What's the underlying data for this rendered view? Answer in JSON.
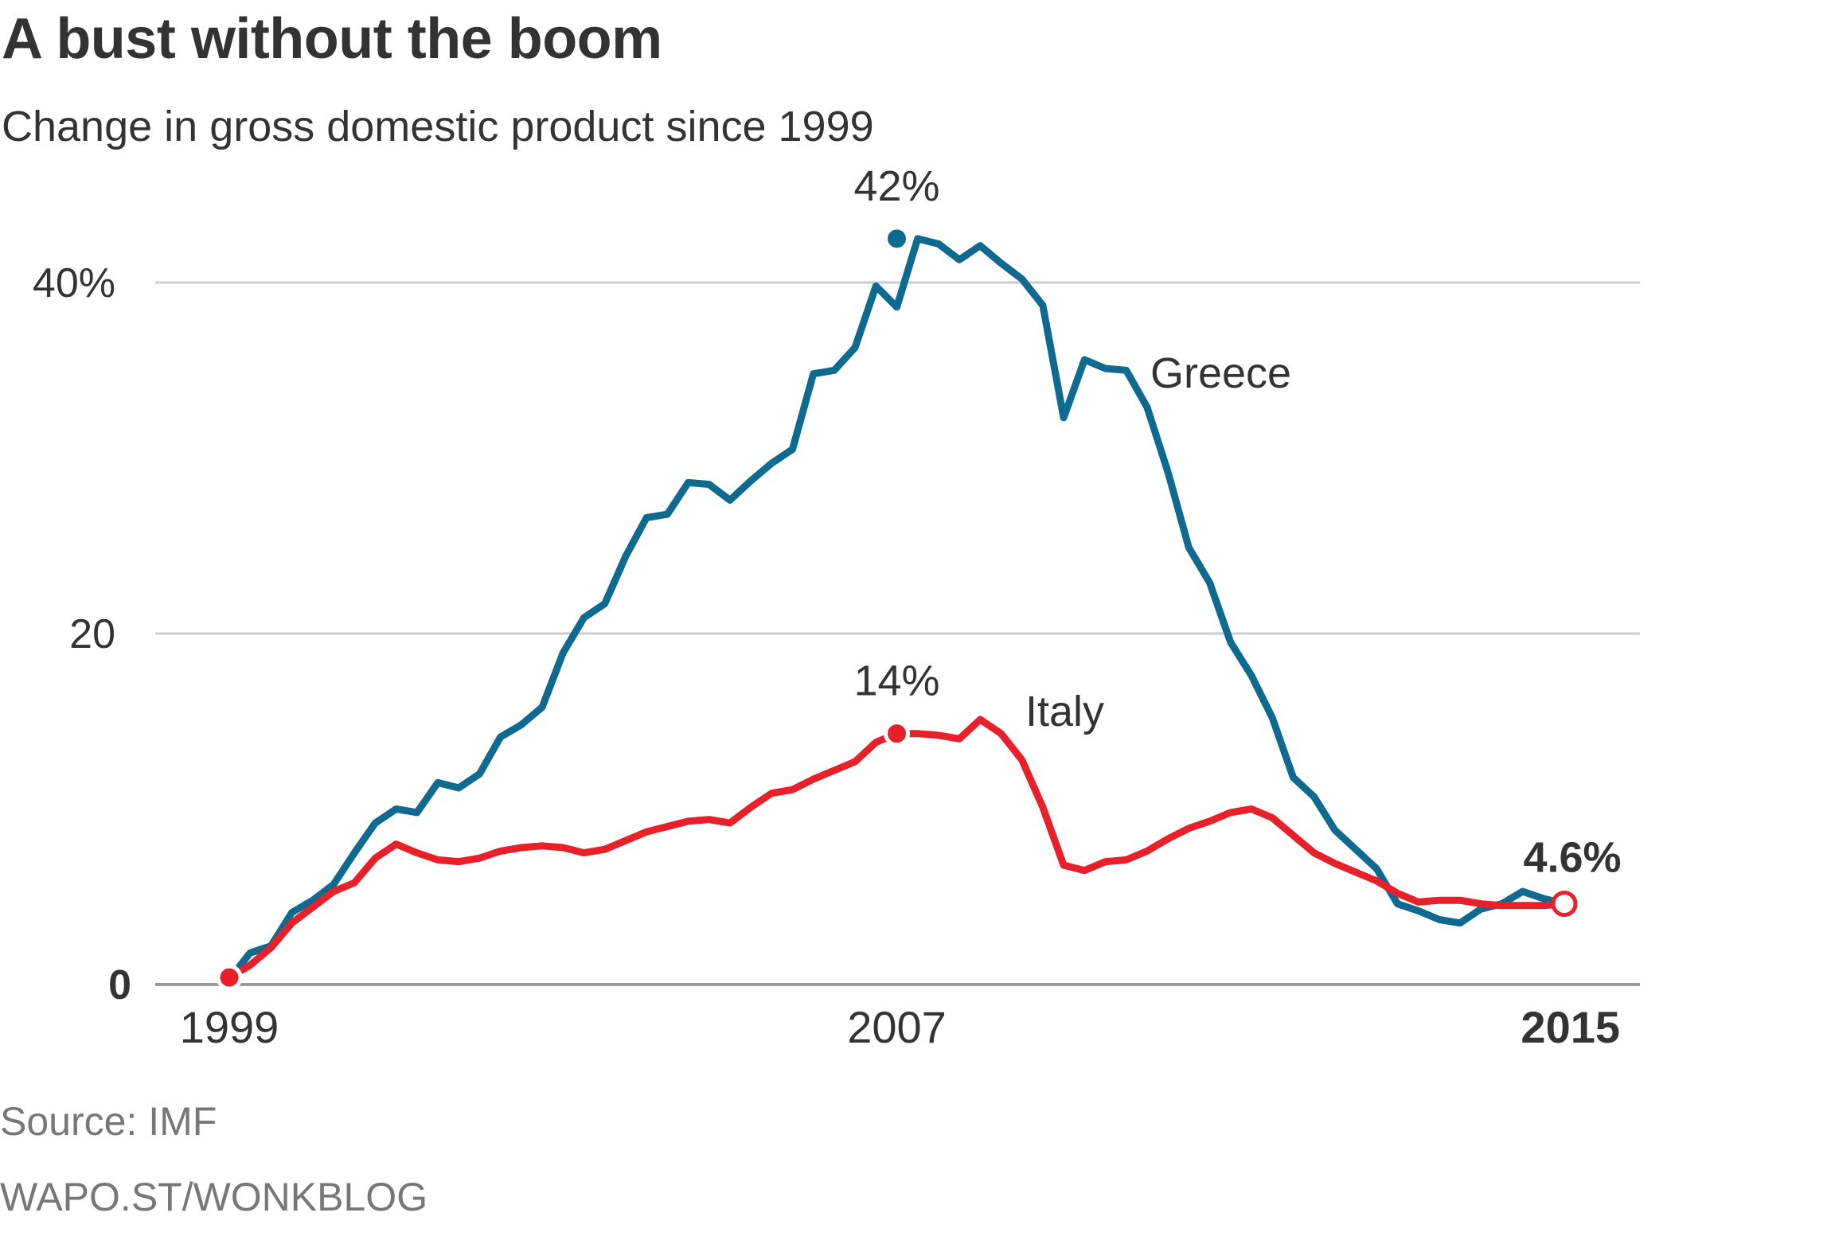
{
  "title": "A bust without the boom",
  "subtitle": "Change in gross domestic product since 1999",
  "source": "Source: IMF",
  "credit": "WAPO.ST/WONKBLOG",
  "colors": {
    "greece": "#0e6b8f",
    "italy": "#e8202a",
    "grid": "#cccccc",
    "axis": "#999999",
    "text": "#333333"
  },
  "chart_data": {
    "type": "line",
    "title": "A bust without the boom",
    "subtitle": "Change in gross domestic product since 1999",
    "xlabel": "",
    "ylabel": "",
    "xlim": [
      1999,
      2015
    ],
    "ylim": [
      0,
      45
    ],
    "x_ticks": [
      {
        "value": 1999,
        "label": "1999"
      },
      {
        "value": 2007,
        "label": "2007"
      },
      {
        "value": 2015,
        "label": "2015"
      }
    ],
    "y_ticks": [
      {
        "value": 0,
        "label": "0"
      },
      {
        "value": 20,
        "label": "20"
      },
      {
        "value": 40,
        "label": "40%"
      }
    ],
    "grid": true,
    "series": [
      {
        "name": "Greece",
        "values": [
          [
            1999,
            0.3
          ],
          [
            1999.25,
            1.8
          ],
          [
            1999.5,
            2.2
          ],
          [
            1999.75,
            4.1
          ],
          [
            2000,
            4.8
          ],
          [
            2000.25,
            5.7
          ],
          [
            2000.5,
            7.5
          ],
          [
            2000.75,
            9.2
          ],
          [
            2001,
            10.0
          ],
          [
            2001.25,
            9.8
          ],
          [
            2001.5,
            11.5
          ],
          [
            2001.75,
            11.2
          ],
          [
            2002,
            12.0
          ],
          [
            2002.25,
            14.1
          ],
          [
            2002.5,
            14.8
          ],
          [
            2002.75,
            15.8
          ],
          [
            2003,
            18.9
          ],
          [
            2003.25,
            20.9
          ],
          [
            2003.5,
            21.7
          ],
          [
            2003.75,
            24.4
          ],
          [
            2004,
            26.6
          ],
          [
            2004.25,
            26.8
          ],
          [
            2004.5,
            28.6
          ],
          [
            2004.75,
            28.5
          ],
          [
            2005,
            27.6
          ],
          [
            2005.25,
            28.7
          ],
          [
            2005.5,
            29.7
          ],
          [
            2005.75,
            30.5
          ],
          [
            2006,
            34.8
          ],
          [
            2006.25,
            35.0
          ],
          [
            2006.5,
            36.3
          ],
          [
            2006.75,
            39.8
          ],
          [
            2007,
            38.6
          ],
          [
            2007.25,
            42.5
          ],
          [
            2007.5,
            42.2
          ],
          [
            2007.75,
            41.3
          ],
          [
            2008,
            42.1
          ],
          [
            2008.25,
            41.1
          ],
          [
            2008.5,
            40.2
          ],
          [
            2008.75,
            38.7
          ],
          [
            2009,
            32.3
          ],
          [
            2009.25,
            35.6
          ],
          [
            2009.5,
            35.1
          ],
          [
            2009.75,
            35.0
          ],
          [
            2010,
            32.9
          ],
          [
            2010.25,
            29.2
          ],
          [
            2010.5,
            24.9
          ],
          [
            2010.75,
            22.9
          ],
          [
            2011,
            19.5
          ],
          [
            2011.25,
            17.6
          ],
          [
            2011.5,
            15.2
          ],
          [
            2011.75,
            11.8
          ],
          [
            2012,
            10.7
          ],
          [
            2012.25,
            8.8
          ],
          [
            2012.5,
            7.7
          ],
          [
            2012.75,
            6.6
          ],
          [
            2013,
            4.6
          ],
          [
            2013.25,
            4.2
          ],
          [
            2013.5,
            3.7
          ],
          [
            2013.75,
            3.5
          ],
          [
            2014,
            4.3
          ],
          [
            2014.25,
            4.6
          ],
          [
            2014.5,
            5.3
          ],
          [
            2014.75,
            4.9
          ],
          [
            2015,
            4.6
          ]
        ]
      },
      {
        "name": "Italy",
        "values": [
          [
            1999,
            0.4
          ],
          [
            1999.25,
            1.1
          ],
          [
            1999.5,
            2.1
          ],
          [
            1999.75,
            3.5
          ],
          [
            2000,
            4.4
          ],
          [
            2000.25,
            5.3
          ],
          [
            2000.5,
            5.8
          ],
          [
            2000.75,
            7.2
          ],
          [
            2001,
            8.0
          ],
          [
            2001.25,
            7.5
          ],
          [
            2001.5,
            7.1
          ],
          [
            2001.75,
            7.0
          ],
          [
            2002,
            7.2
          ],
          [
            2002.25,
            7.6
          ],
          [
            2002.5,
            7.8
          ],
          [
            2002.75,
            7.9
          ],
          [
            2003,
            7.8
          ],
          [
            2003.25,
            7.5
          ],
          [
            2003.5,
            7.7
          ],
          [
            2003.75,
            8.2
          ],
          [
            2004,
            8.7
          ],
          [
            2004.25,
            9.0
          ],
          [
            2004.5,
            9.3
          ],
          [
            2004.75,
            9.4
          ],
          [
            2005,
            9.2
          ],
          [
            2005.25,
            10.1
          ],
          [
            2005.5,
            10.9
          ],
          [
            2005.75,
            11.1
          ],
          [
            2006,
            11.7
          ],
          [
            2006.25,
            12.2
          ],
          [
            2006.5,
            12.7
          ],
          [
            2006.75,
            13.8
          ],
          [
            2007,
            14.3
          ],
          [
            2007.25,
            14.3
          ],
          [
            2007.5,
            14.2
          ],
          [
            2007.75,
            14.0
          ],
          [
            2008,
            15.1
          ],
          [
            2008.25,
            14.3
          ],
          [
            2008.5,
            12.8
          ],
          [
            2008.75,
            10.1
          ],
          [
            2009,
            6.8
          ],
          [
            2009.25,
            6.5
          ],
          [
            2009.5,
            7.0
          ],
          [
            2009.75,
            7.1
          ],
          [
            2010,
            7.6
          ],
          [
            2010.25,
            8.3
          ],
          [
            2010.5,
            8.9
          ],
          [
            2010.75,
            9.3
          ],
          [
            2011,
            9.8
          ],
          [
            2011.25,
            10.0
          ],
          [
            2011.5,
            9.5
          ],
          [
            2011.75,
            8.5
          ],
          [
            2012,
            7.5
          ],
          [
            2012.25,
            6.9
          ],
          [
            2012.5,
            6.4
          ],
          [
            2012.75,
            5.9
          ],
          [
            2013,
            5.2
          ],
          [
            2013.25,
            4.7
          ],
          [
            2013.5,
            4.8
          ],
          [
            2013.75,
            4.8
          ],
          [
            2014,
            4.6
          ],
          [
            2014.25,
            4.5
          ],
          [
            2014.5,
            4.5
          ],
          [
            2014.75,
            4.5
          ],
          [
            2015,
            4.6
          ]
        ]
      }
    ],
    "annotations": [
      {
        "series": "Greece",
        "x": 2007,
        "y": 42.5,
        "label": "42%",
        "bold": false
      },
      {
        "series": "Italy",
        "x": 2007,
        "y": 14.3,
        "label": "14%",
        "bold": false
      },
      {
        "series": "Italy",
        "x": 2015,
        "y": 4.6,
        "label": "4.6%",
        "bold": true
      }
    ],
    "series_labels": [
      {
        "series": "Greece",
        "label": "Greece"
      },
      {
        "series": "Italy",
        "label": "Italy"
      }
    ],
    "legend": "inline"
  }
}
